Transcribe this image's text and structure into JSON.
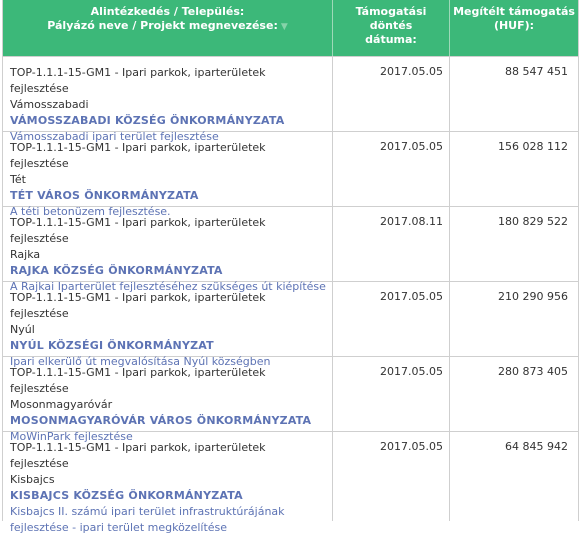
{
  "header": {
    "col1_line1": "Alintézkedés / Település:",
    "col1_line2": "Pályázó neve / Projekt megnevezése:",
    "col2_line1": "Támogatási döntés",
    "col2_line2": "dátuma:",
    "col3_line1": "Megítélt támogatás",
    "col3_line2": "(HUF):"
  },
  "rows": [
    {
      "code": "TOP-1.1.1-15-GM1 - Ipari parkok, iparterületek fejlesztése",
      "place": "Vámosszabadi",
      "org": "VÁMOSSZABADI KÖZSÉG ÖNKORMÁNYZATA",
      "project": "Vámosszabadi ipari terület fejlesztése",
      "date": "2017.05.05",
      "amount": "88 547 451"
    },
    {
      "code": "TOP-1.1.1-15-GM1 - Ipari parkok, iparterületek fejlesztése",
      "place": "Tét",
      "org": "TÉT VÁROS ÖNKORMÁNYZATA",
      "project": "A téti betonüzem fejlesztése.",
      "date": "2017.05.05",
      "amount": "156 028 112"
    },
    {
      "code": "TOP-1.1.1-15-GM1 - Ipari parkok, iparterületek fejlesztése",
      "place": "Rajka",
      "org": "RAJKA KÖZSÉG ÖNKORMÁNYZATA",
      "project": "A Rajkai Iparterület fejlesztéséhez szükséges út kiépítése",
      "date": "2017.08.11",
      "amount": "180 829 522"
    },
    {
      "code": "TOP-1.1.1-15-GM1 - Ipari parkok, iparterületek fejlesztése",
      "place": "Nyúl",
      "org": "NYÚL KÖZSÉGI ÖNKORMÁNYZAT",
      "project": "Ipari elkerülő út megvalósítása Nyúl községben",
      "date": "2017.05.05",
      "amount": "210 290 956"
    },
    {
      "code": "TOP-1.1.1-15-GM1 - Ipari parkok, iparterületek fejlesztése",
      "place": "Mosonmagyaróvár",
      "org": "MOSONMAGYARÓVÁR VÁROS ÖNKORMÁNYZATA",
      "project": "MoWinPark fejlesztése",
      "date": "2017.05.05",
      "amount": "280 873 405"
    },
    {
      "code": "TOP-1.1.1-15-GM1 - Ipari parkok, iparterületek fejlesztése",
      "place": "Kisbajcs",
      "org": "KISBAJCS KÖZSÉG ÖNKORMÁNYZATA",
      "project": "Kisbajcs II. számú ipari terület infrastruktúrájának fejlesztése - ipari terület megközelítése",
      "date": "2017.05.05",
      "amount": "64 845 942"
    }
  ],
  "colors": {
    "header_bg": "#3cb879",
    "link": "#5d73b4",
    "border": "#cfcfcf"
  },
  "icons": {
    "sort": "sort-arrow-icon"
  }
}
